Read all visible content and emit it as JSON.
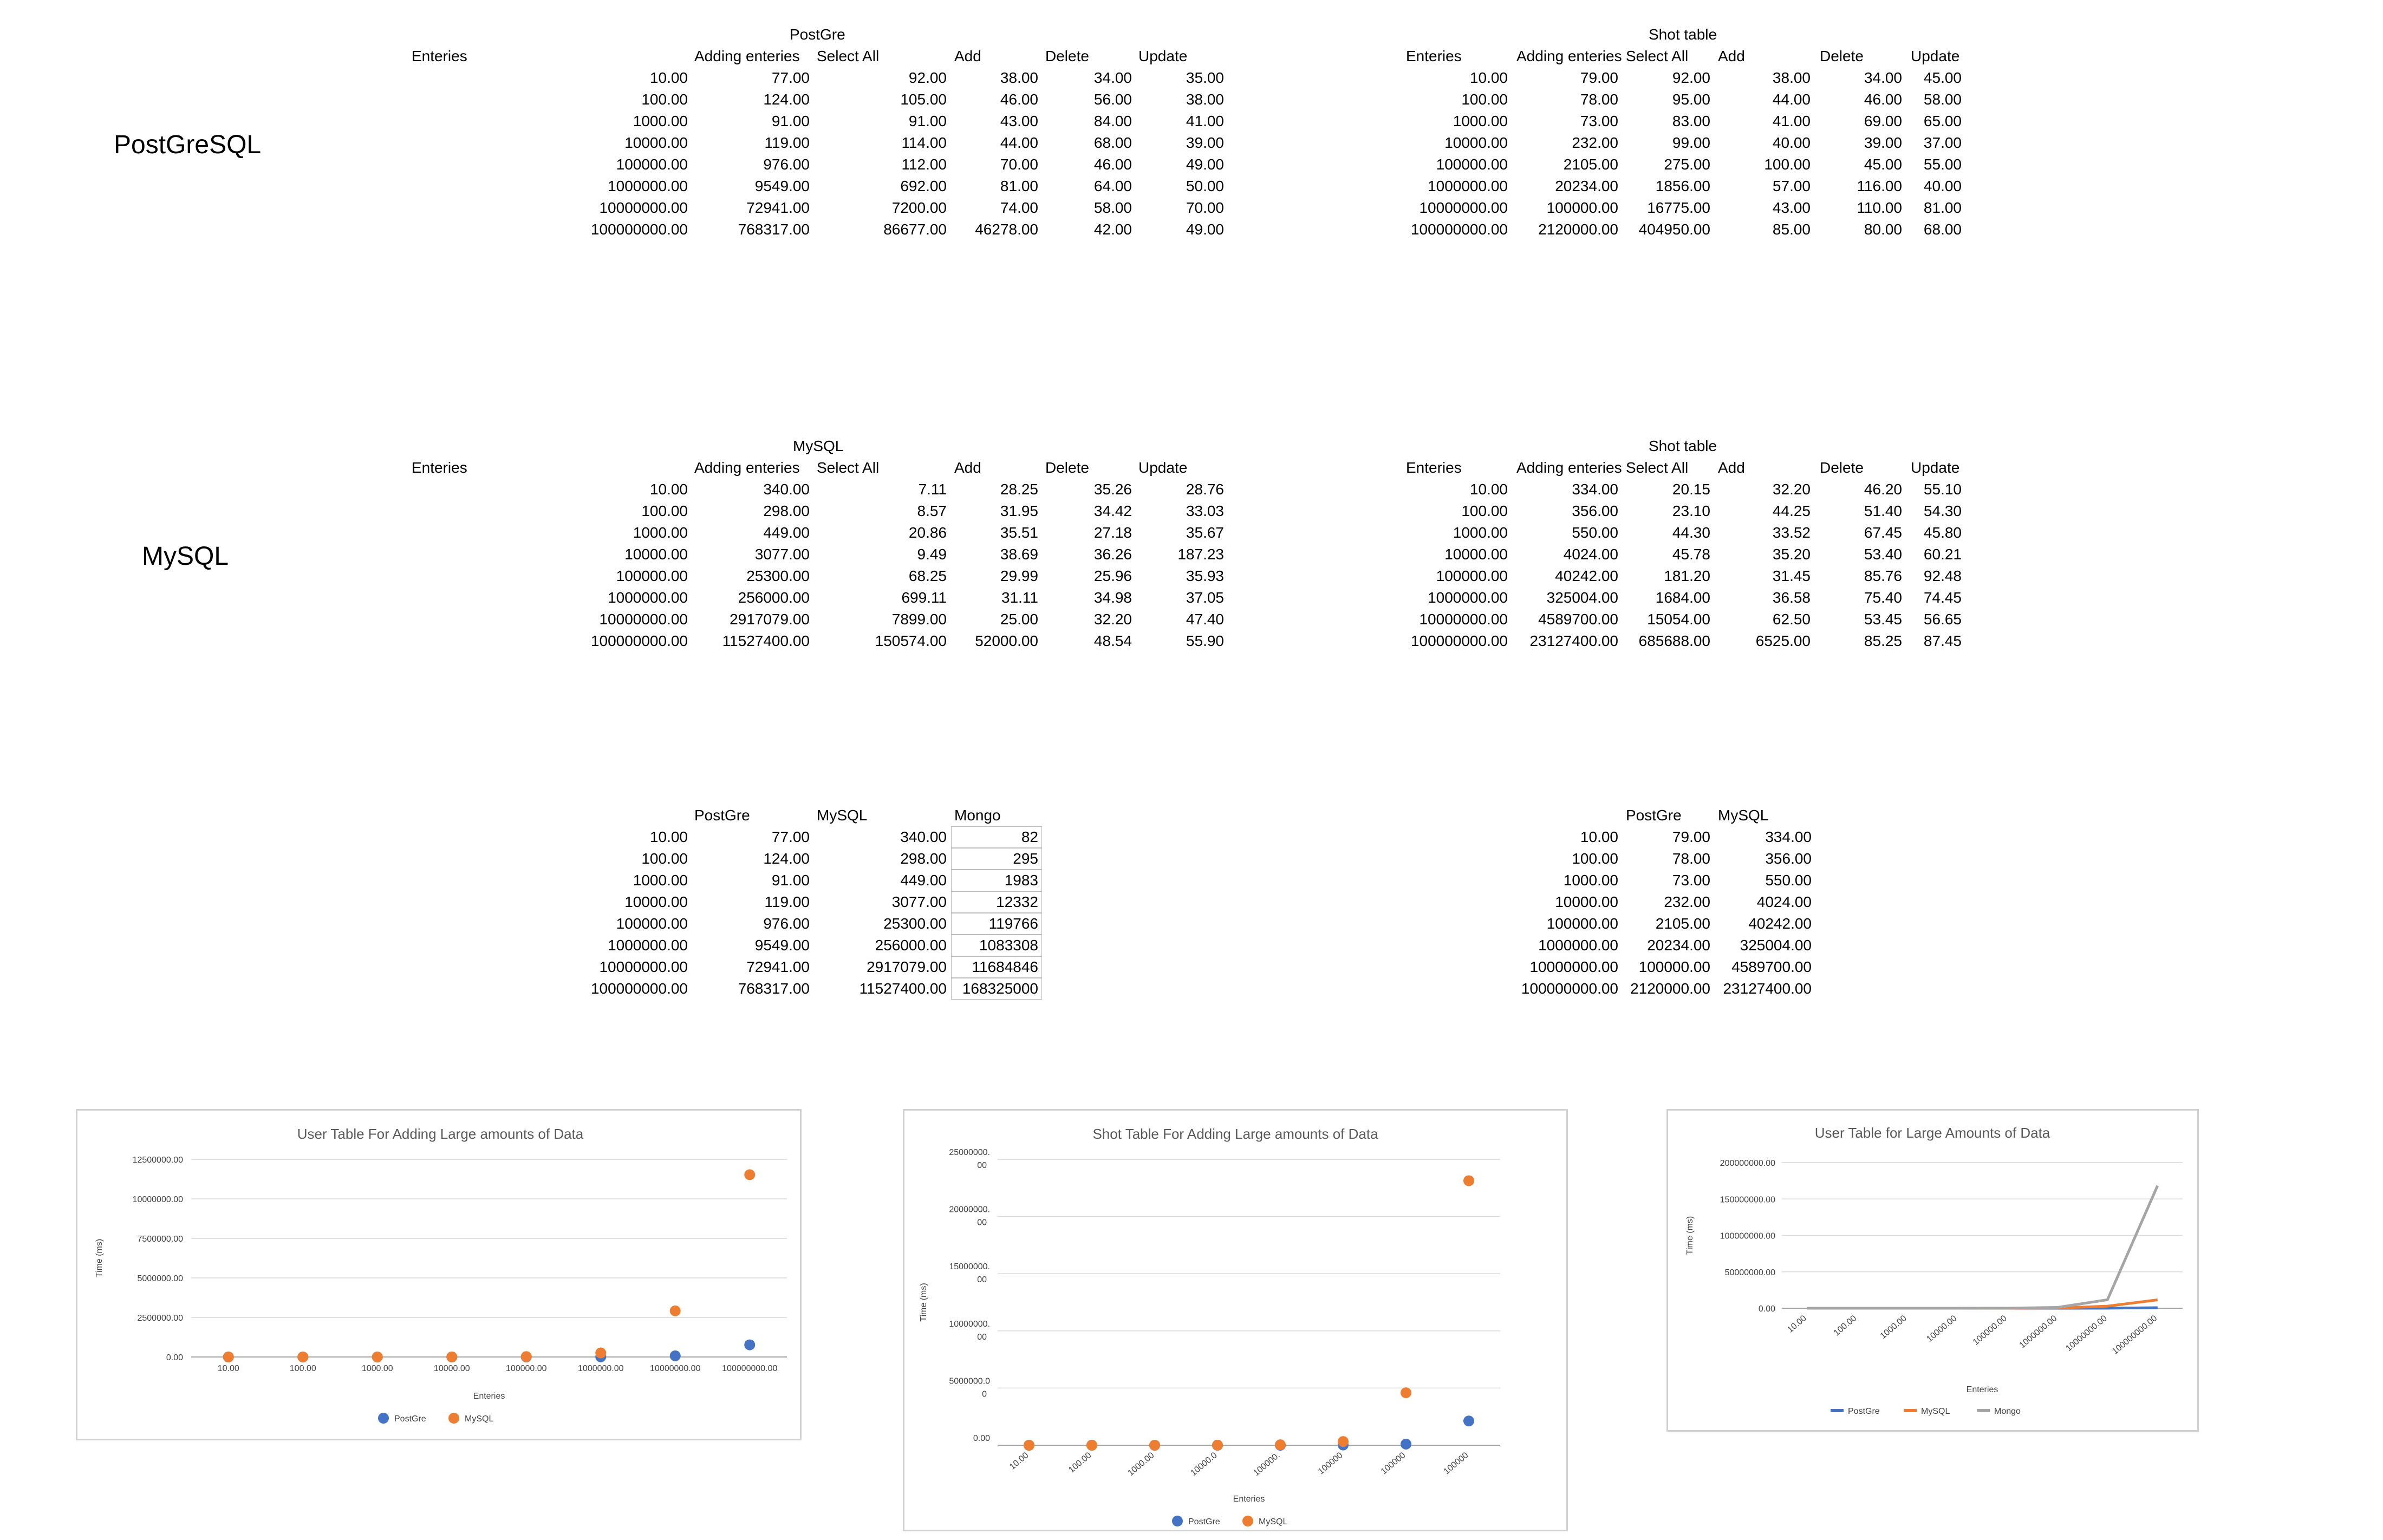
{
  "labels": {
    "postgresql": "PostGreSQL",
    "mysql": "MySQL"
  },
  "pg_user": {
    "title": "PostGre",
    "headers": [
      "Enteries",
      "Adding enteries",
      "Select All",
      "Add",
      "Delete",
      "Update"
    ],
    "rows": [
      [
        "10.00",
        "77.00",
        "92.00",
        "38.00",
        "34.00",
        "35.00"
      ],
      [
        "100.00",
        "124.00",
        "105.00",
        "46.00",
        "56.00",
        "38.00"
      ],
      [
        "1000.00",
        "91.00",
        "91.00",
        "43.00",
        "84.00",
        "41.00"
      ],
      [
        "10000.00",
        "119.00",
        "114.00",
        "44.00",
        "68.00",
        "39.00"
      ],
      [
        "100000.00",
        "976.00",
        "112.00",
        "70.00",
        "46.00",
        "49.00"
      ],
      [
        "1000000.00",
        "9549.00",
        "692.00",
        "81.00",
        "64.00",
        "50.00"
      ],
      [
        "10000000.00",
        "72941.00",
        "7200.00",
        "74.00",
        "58.00",
        "70.00"
      ],
      [
        "100000000.00",
        "768317.00",
        "86677.00",
        "46278.00",
        "42.00",
        "49.00"
      ]
    ]
  },
  "pg_shot": {
    "title": "Shot table",
    "headers": [
      "Enteries",
      "Adding enteries",
      "Select All",
      "Add",
      "Delete",
      "Update"
    ],
    "rows": [
      [
        "10.00",
        "79.00",
        "92.00",
        "38.00",
        "34.00",
        "45.00"
      ],
      [
        "100.00",
        "78.00",
        "95.00",
        "44.00",
        "46.00",
        "58.00"
      ],
      [
        "1000.00",
        "73.00",
        "83.00",
        "41.00",
        "69.00",
        "65.00"
      ],
      [
        "10000.00",
        "232.00",
        "99.00",
        "40.00",
        "39.00",
        "37.00"
      ],
      [
        "100000.00",
        "2105.00",
        "275.00",
        "100.00",
        "45.00",
        "55.00"
      ],
      [
        "1000000.00",
        "20234.00",
        "1856.00",
        "57.00",
        "116.00",
        "40.00"
      ],
      [
        "10000000.00",
        "100000.00",
        "16775.00",
        "43.00",
        "110.00",
        "81.00"
      ],
      [
        "100000000.00",
        "2120000.00",
        "404950.00",
        "85.00",
        "80.00",
        "68.00"
      ]
    ]
  },
  "my_user": {
    "title": "MySQL",
    "headers": [
      "Enteries",
      "Adding enteries",
      "Select All",
      "Add",
      "Delete",
      "Update"
    ],
    "rows": [
      [
        "10.00",
        "340.00",
        "7.11",
        "28.25",
        "35.26",
        "28.76"
      ],
      [
        "100.00",
        "298.00",
        "8.57",
        "31.95",
        "34.42",
        "33.03"
      ],
      [
        "1000.00",
        "449.00",
        "20.86",
        "35.51",
        "27.18",
        "35.67"
      ],
      [
        "10000.00",
        "3077.00",
        "9.49",
        "38.69",
        "36.26",
        "187.23"
      ],
      [
        "100000.00",
        "25300.00",
        "68.25",
        "29.99",
        "25.96",
        "35.93"
      ],
      [
        "1000000.00",
        "256000.00",
        "699.11",
        "31.11",
        "34.98",
        "37.05"
      ],
      [
        "10000000.00",
        "2917079.00",
        "7899.00",
        "25.00",
        "32.20",
        "47.40"
      ],
      [
        "100000000.00",
        "11527400.00",
        "150574.00",
        "52000.00",
        "48.54",
        "55.90"
      ]
    ]
  },
  "my_shot": {
    "title": "Shot table",
    "headers": [
      "Enteries",
      "Adding enteries",
      "Select All",
      "Add",
      "Delete",
      "Update"
    ],
    "rows": [
      [
        "10.00",
        "334.00",
        "20.15",
        "32.20",
        "46.20",
        "55.10"
      ],
      [
        "100.00",
        "356.00",
        "23.10",
        "44.25",
        "51.40",
        "54.30"
      ],
      [
        "1000.00",
        "550.00",
        "44.30",
        "33.52",
        "67.45",
        "45.80"
      ],
      [
        "10000.00",
        "4024.00",
        "45.78",
        "35.20",
        "53.40",
        "60.21"
      ],
      [
        "100000.00",
        "40242.00",
        "181.20",
        "31.45",
        "85.76",
        "92.48"
      ],
      [
        "1000000.00",
        "325004.00",
        "1684.00",
        "36.58",
        "75.40",
        "74.45"
      ],
      [
        "10000000.00",
        "4589700.00",
        "15054.00",
        "62.50",
        "53.45",
        "56.65"
      ],
      [
        "100000000.00",
        "23127400.00",
        "685688.00",
        "6525.00",
        "85.25",
        "87.45"
      ]
    ]
  },
  "compare_user": {
    "headers": [
      "PostGre",
      "MySQL",
      "Mongo"
    ],
    "rows": [
      [
        "10.00",
        "77.00",
        "340.00",
        "82"
      ],
      [
        "100.00",
        "124.00",
        "298.00",
        "295"
      ],
      [
        "1000.00",
        "91.00",
        "449.00",
        "1983"
      ],
      [
        "10000.00",
        "119.00",
        "3077.00",
        "12332"
      ],
      [
        "100000.00",
        "976.00",
        "25300.00",
        "119766"
      ],
      [
        "1000000.00",
        "9549.00",
        "256000.00",
        "1083308"
      ],
      [
        "10000000.00",
        "72941.00",
        "2917079.00",
        "11684846"
      ],
      [
        "100000000.00",
        "768317.00",
        "11527400.00",
        "168325000"
      ]
    ]
  },
  "compare_shot": {
    "headers": [
      "PostGre",
      "MySQL"
    ],
    "rows": [
      [
        "10.00",
        "79.00",
        "334.00"
      ],
      [
        "100.00",
        "78.00",
        "356.00"
      ],
      [
        "1000.00",
        "73.00",
        "550.00"
      ],
      [
        "10000.00",
        "232.00",
        "4024.00"
      ],
      [
        "100000.00",
        "2105.00",
        "40242.00"
      ],
      [
        "1000000.00",
        "20234.00",
        "325004.00"
      ],
      [
        "10000000.00",
        "100000.00",
        "4589700.00"
      ],
      [
        "100000000.00",
        "2120000.00",
        "23127400.00"
      ]
    ]
  },
  "colors": {
    "postgre": "#4472c4",
    "mysql": "#ed7d31",
    "mongo": "#a5a5a5",
    "grid": "#d9d9d9",
    "title": "#595959",
    "axis_text": "#404040"
  },
  "chart_data": [
    {
      "type": "scatter",
      "title": "User Table For Adding Large amounts of Data",
      "xlabel": "Enteries",
      "ylabel": "Time (ms)",
      "categories": [
        "10.00",
        "100.00",
        "1000.00",
        "10000.00",
        "100000.00",
        "1000000.00",
        "10000000.00",
        "100000000.00"
      ],
      "yticks": [
        "0.00",
        "2500000.00",
        "5000000.00",
        "7500000.00",
        "10000000.00",
        "12500000.00"
      ],
      "ylim": [
        0,
        12500000
      ],
      "series": [
        {
          "name": "PostGre",
          "values": [
            77,
            124,
            91,
            119,
            976,
            9549,
            72941,
            768317
          ]
        },
        {
          "name": "MySQL",
          "values": [
            340,
            298,
            449,
            3077,
            25300,
            256000,
            2917079,
            11527400
          ]
        }
      ]
    },
    {
      "type": "scatter",
      "title": "Shot Table For Adding Large amounts of Data",
      "xlabel": "Enteries",
      "ylabel": "Time (ms)",
      "categories": [
        "10.00",
        "100.00",
        "1000.00",
        "10000.0",
        "100000.",
        "100000",
        "100000",
        "100000"
      ],
      "yticks": [
        [
          "0.00",
          ""
        ],
        [
          "5000000.0",
          "0"
        ],
        [
          "10000000.",
          "00"
        ],
        [
          "15000000.",
          "00"
        ],
        [
          "20000000.",
          "00"
        ],
        [
          "25000000.",
          "00"
        ]
      ],
      "ylim": [
        0,
        25000000
      ],
      "series": [
        {
          "name": "PostGre",
          "values": [
            79,
            78,
            73,
            232,
            2105,
            20234,
            100000,
            2120000
          ]
        },
        {
          "name": "MySQL",
          "values": [
            334,
            356,
            550,
            4024,
            40242,
            325004,
            4589700,
            23127400
          ]
        }
      ]
    },
    {
      "type": "line",
      "title": "User Table for Large Amounts of Data",
      "xlabel": "Enteries",
      "ylabel": "Time (ms)",
      "categories": [
        "10.00",
        "100.00",
        "1000.00",
        "10000.00",
        "100000.00",
        "1000000.00",
        "10000000.00",
        "100000000.00"
      ],
      "yticks": [
        "0.00",
        "50000000.00",
        "100000000.00",
        "150000000.00",
        "200000000.00"
      ],
      "ylim": [
        0,
        200000000
      ],
      "series": [
        {
          "name": "PostGre",
          "values": [
            77,
            124,
            91,
            119,
            976,
            9549,
            72941,
            768317
          ]
        },
        {
          "name": "MySQL",
          "values": [
            340,
            298,
            449,
            3077,
            25300,
            256000,
            2917079,
            11527400
          ]
        },
        {
          "name": "Mongo",
          "values": [
            82,
            295,
            1983,
            12332,
            119766,
            1083308,
            11684846,
            168325000
          ]
        }
      ]
    }
  ]
}
